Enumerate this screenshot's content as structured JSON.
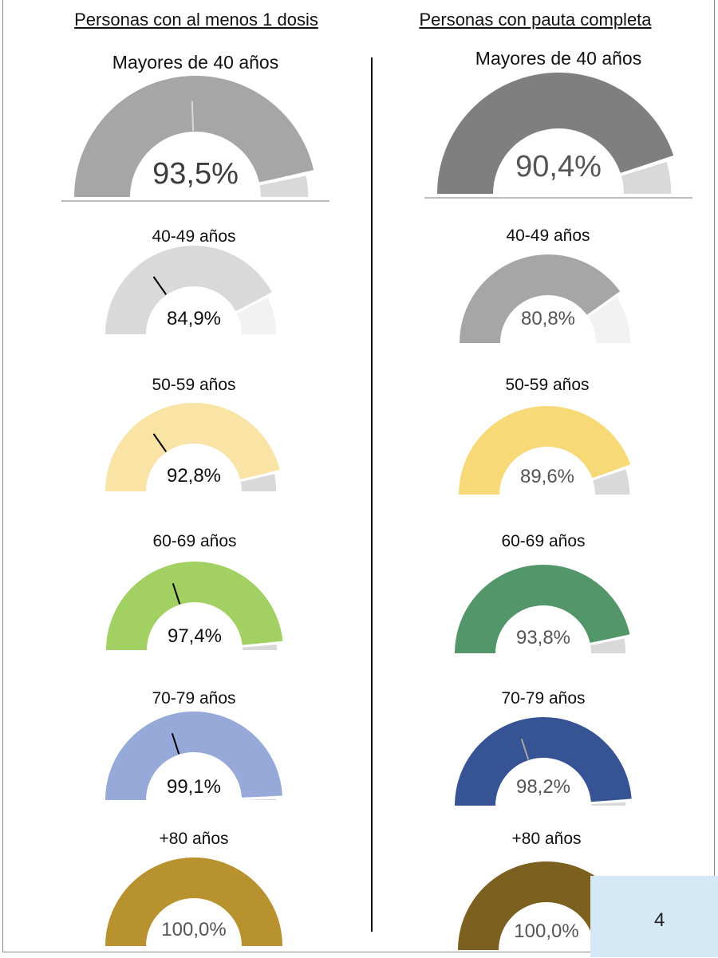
{
  "headers": {
    "left": "Personas con al menos 1 dosis",
    "right": "Personas con pauta completa"
  },
  "page_number": "4",
  "chart_data": [
    {
      "type": "gauge",
      "title": "Mayores de 40 años",
      "value": 93.5,
      "value_label": "93,5%",
      "max": 100,
      "fill_color": "#a6a6a6",
      "rest_color": "#d9d9d9",
      "needle_color": "#d9d9d9"
    },
    {
      "type": "gauge",
      "title": "40-49 años",
      "value": 84.9,
      "value_label": "84,9%",
      "max": 100,
      "fill_color": "#d9d9d9",
      "rest_color": "#f2f2f2",
      "needle_color": "#000000"
    },
    {
      "type": "gauge",
      "title": "50-59 años",
      "value": 92.8,
      "value_label": "92,8%",
      "max": 100,
      "fill_color": "#f9e4a6",
      "rest_color": "#d9d9d9",
      "needle_color": "#000000"
    },
    {
      "type": "gauge",
      "title": "60-69 años",
      "value": 97.4,
      "value_label": "97,4%",
      "max": 100,
      "fill_color": "#a3d063",
      "rest_color": "#d9d9d9",
      "needle_color": "#000000"
    },
    {
      "type": "gauge",
      "title": "70-79 años",
      "value": 99.1,
      "value_label": "99,1%",
      "max": 100,
      "fill_color": "#96a9d8",
      "rest_color": "#d9d9d9",
      "needle_color": "#000000"
    },
    {
      "type": "gauge",
      "title": "+80 años",
      "value": 100.0,
      "value_label": "100,0%",
      "max": 100,
      "fill_color": "#b8922e",
      "rest_color": "#d9d9d9",
      "needle_color": "#b8922e"
    },
    {
      "type": "gauge",
      "title": "Mayores de 40 años",
      "value": 90.4,
      "value_label": "90,4%",
      "max": 100,
      "fill_color": "#7f7f7f",
      "rest_color": "#d9d9d9",
      "needle_color": "#7f7f7f"
    },
    {
      "type": "gauge",
      "title": "40-49 años",
      "value": 80.8,
      "value_label": "80,8%",
      "max": 100,
      "fill_color": "#a6a6a6",
      "rest_color": "#f2f2f2",
      "needle_color": "#a6a6a6"
    },
    {
      "type": "gauge",
      "title": "50-59 años",
      "value": 89.6,
      "value_label": "89,6%",
      "max": 100,
      "fill_color": "#f7d977",
      "rest_color": "#d9d9d9",
      "needle_color": "#f7d977"
    },
    {
      "type": "gauge",
      "title": "60-69 años",
      "value": 93.8,
      "value_label": "93,8%",
      "max": 100,
      "fill_color": "#52966a",
      "rest_color": "#d9d9d9",
      "needle_color": "#52966a"
    },
    {
      "type": "gauge",
      "title": "70-79 años",
      "value": 98.2,
      "value_label": "98,2%",
      "max": 100,
      "fill_color": "#365493",
      "rest_color": "#d9d9d9",
      "needle_color": "#a6a6a6"
    },
    {
      "type": "gauge",
      "title": "+80 años",
      "value": 100.0,
      "value_label": "100,0%",
      "max": 100,
      "fill_color": "#7b6020",
      "rest_color": "#d9d9d9",
      "needle_color": "#7b6020"
    }
  ]
}
